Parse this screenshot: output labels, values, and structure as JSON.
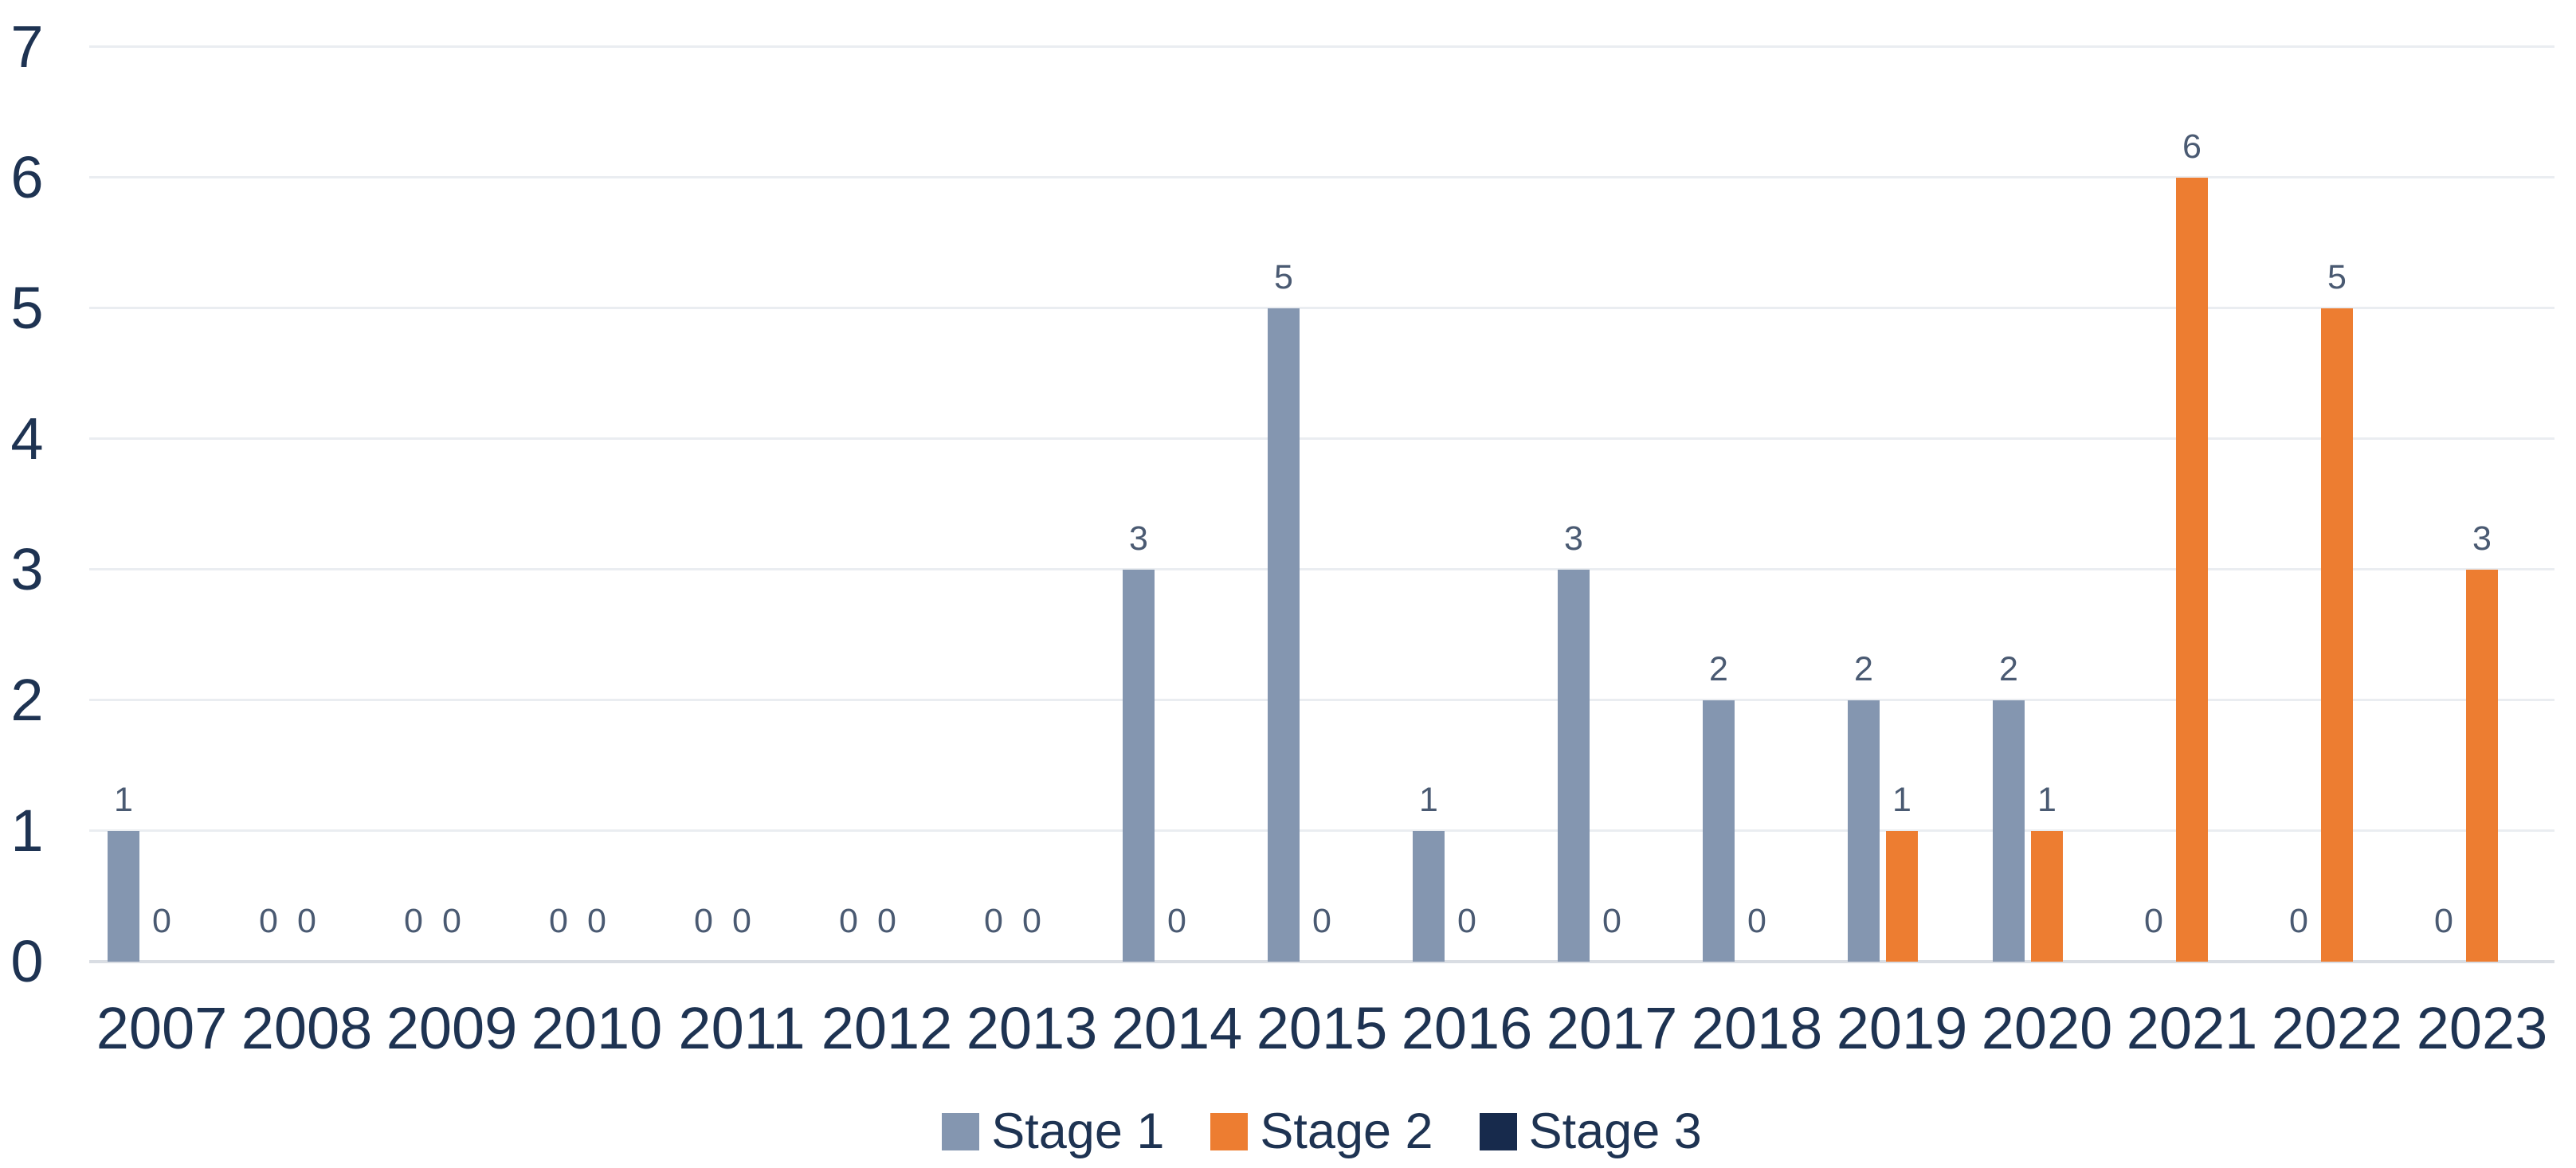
{
  "chart_data": {
    "type": "bar",
    "title": "",
    "categories": [
      "2007",
      "2008",
      "2009",
      "2010",
      "2011",
      "2012",
      "2013",
      "2014",
      "2015",
      "2016",
      "2017",
      "2018",
      "2019",
      "2020",
      "2021",
      "2022",
      "2023"
    ],
    "series": [
      {
        "name": "Stage 1",
        "color": "#8496B0",
        "show_value_labels": true,
        "values": [
          1,
          0,
          0,
          0,
          0,
          0,
          0,
          3,
          5,
          1,
          3,
          2,
          2,
          2,
          0,
          0,
          0
        ]
      },
      {
        "name": "Stage 2",
        "color": "#ED7D31",
        "show_value_labels": true,
        "values": [
          0,
          0,
          0,
          0,
          0,
          0,
          0,
          0,
          0,
          0,
          0,
          0,
          1,
          1,
          6,
          5,
          3
        ]
      },
      {
        "name": "Stage 3",
        "color": "#172A4C",
        "show_value_labels": false,
        "values": [
          0,
          0,
          0,
          0,
          0,
          0,
          0,
          0,
          0,
          0,
          0,
          0,
          0,
          0,
          0,
          0,
          0
        ]
      }
    ],
    "y_axis": {
      "min": 0,
      "max": 7,
      "tick_step": 1,
      "ticks": [
        "0",
        "1",
        "2",
        "3",
        "4",
        "5",
        "6",
        "7"
      ]
    },
    "x_axis_label": "",
    "y_axis_label": "",
    "grid": true,
    "legend": {
      "position": "bottom",
      "entries": [
        "Stage 1",
        "Stage 2",
        "Stage 3"
      ]
    },
    "colors": {
      "background": "#FFFFFF",
      "axis_text": "#1E3352",
      "data_label_text": "#4A5A72",
      "gridline": "#EAEDF1",
      "baseline": "#D9DDE3"
    }
  }
}
